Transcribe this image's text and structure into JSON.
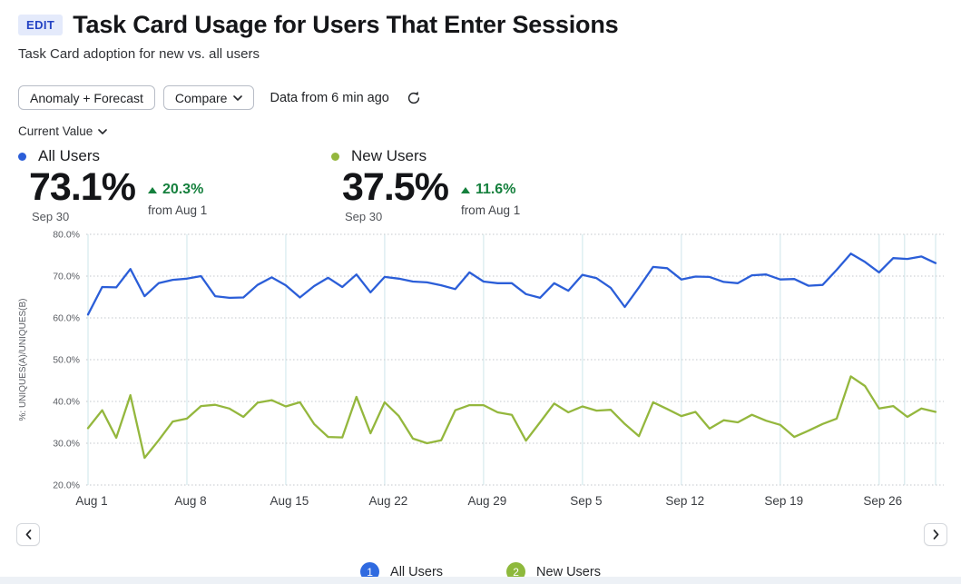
{
  "header": {
    "edit_badge": "EDIT",
    "title": "Task Card Usage for Users That Enter Sessions",
    "subtitle": "Task Card adoption for new vs. all users"
  },
  "toolbar": {
    "anomaly_button": "Anomaly + Forecast",
    "compare_button": "Compare",
    "data_freshness": "Data from 6 min ago"
  },
  "controls": {
    "value_mode": "Current Value"
  },
  "metrics": [
    {
      "name": "All Users",
      "value": "73.1%",
      "date": "Sep 30",
      "change": "20.3%",
      "change_from": "from Aug 1",
      "color": "#2b5ed8"
    },
    {
      "name": "New Users",
      "value": "37.5%",
      "date": "Sep 30",
      "change": "11.6%",
      "change_from": "from Aug 1",
      "color": "#94b73d"
    }
  ],
  "legend": [
    {
      "index": "1",
      "label": "All Users",
      "color": "#2f6ae0"
    },
    {
      "index": "2",
      "label": "New Users",
      "color": "#8eb93c"
    }
  ],
  "colors": {
    "change_positive": "#15803d",
    "h_gridline": "#cfd2d6",
    "v_gridline": "#dcedf0",
    "tick_text": "#5a5d63",
    "x_tick_text": "#3a3d42"
  },
  "chart_data": {
    "type": "line",
    "title": "Task Card Usage for Users That Enter Sessions",
    "xlabel": "",
    "ylabel": "%: UNIQUES(A)/UNIQUES(B)",
    "ylim": [
      20,
      80
    ],
    "y_ticks": [
      "80.0%",
      "70.0%",
      "60.0%",
      "50.0%",
      "40.0%",
      "30.0%",
      "20.0%"
    ],
    "y_tick_values": [
      80,
      70,
      60,
      50,
      40,
      30,
      20
    ],
    "x_ticks": [
      "Aug 1",
      "Aug 8",
      "Aug 15",
      "Aug 22",
      "Aug 29",
      "Sep 5",
      "Sep 12",
      "Sep 19",
      "Sep 26"
    ],
    "x_tick_days": [
      0,
      7,
      14,
      21,
      28,
      35,
      42,
      49,
      56
    ],
    "extra_gridline_days": [
      57.8,
      60
    ],
    "x_range": [
      "Aug 1",
      "Sep 30"
    ],
    "grid": true,
    "legend_position": "bottom",
    "series": [
      {
        "name": "All Users",
        "color": "#2b5ed8",
        "values": [
          60.8,
          67.4,
          67.3,
          71.7,
          65.2,
          68.3,
          69.1,
          69.4,
          70.0,
          65.2,
          64.8,
          64.9,
          67.9,
          69.7,
          67.8,
          64.9,
          67.6,
          69.6,
          67.4,
          70.4,
          66.1,
          69.8,
          69.4,
          68.7,
          68.5,
          67.8,
          66.9,
          70.9,
          68.7,
          68.3,
          68.3,
          65.7,
          64.8,
          68.3,
          66.5,
          70.3,
          69.5,
          67.2,
          62.6,
          67.3,
          72.2,
          71.9,
          69.2,
          69.9,
          69.8,
          68.6,
          68.3,
          70.2,
          70.4,
          69.2,
          69.3,
          67.7,
          67.9,
          71.5,
          75.4,
          73.4,
          70.9,
          74.3,
          74.1,
          74.7,
          73.1
        ]
      },
      {
        "name": "New Users",
        "color": "#94b73d",
        "values": [
          33.6,
          37.9,
          31.3,
          41.5,
          26.5,
          30.7,
          35.2,
          35.9,
          38.9,
          39.2,
          38.3,
          36.3,
          39.7,
          40.3,
          38.8,
          39.8,
          34.6,
          31.5,
          31.4,
          41.1,
          32.4,
          39.8,
          36.5,
          31.1,
          30.0,
          30.7,
          37.9,
          39.1,
          39.1,
          37.4,
          36.8,
          30.6,
          35.0,
          39.5,
          37.4,
          38.8,
          37.8,
          38.0,
          34.6,
          31.7,
          39.8,
          38.2,
          36.5,
          37.5,
          33.5,
          35.5,
          35.0,
          36.8,
          35.4,
          34.4,
          31.5,
          33.0,
          34.6,
          35.9,
          46.0,
          43.7,
          38.3,
          38.9,
          36.3,
          38.3,
          37.5
        ]
      }
    ]
  }
}
